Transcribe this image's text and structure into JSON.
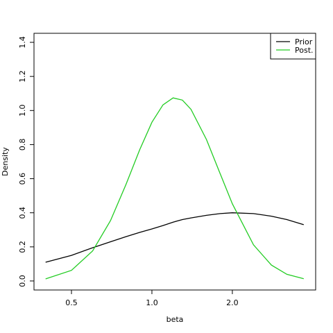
{
  "chart_data": {
    "type": "line",
    "xlabel": "beta",
    "ylabel": "Density",
    "x": [
      0.4,
      0.5,
      0.6,
      0.7,
      0.8,
      0.9,
      1.0,
      1.1,
      1.2,
      1.3,
      1.4,
      1.6,
      1.8,
      2.0,
      2.4,
      2.8,
      3.2,
      3.7
    ],
    "series": [
      {
        "name": "Prior",
        "color": "#000000",
        "values": [
          0.11,
          0.15,
          0.195,
          0.23,
          0.26,
          0.285,
          0.305,
          0.325,
          0.345,
          0.36,
          0.37,
          0.385,
          0.395,
          0.4,
          0.395,
          0.38,
          0.36,
          0.33
        ]
      },
      {
        "name": "Post.",
        "color": "#22cc22",
        "values": [
          0.012,
          0.062,
          0.176,
          0.354,
          0.566,
          0.769,
          0.931,
          1.033,
          1.074,
          1.061,
          1.007,
          0.83,
          0.63,
          0.453,
          0.212,
          0.093,
          0.039,
          0.013
        ]
      }
    ],
    "xscale": "log",
    "xlim": [
      0.362,
      4.1
    ],
    "ylim": [
      -0.053,
      1.453
    ],
    "xticks": [
      0.5,
      {
        "value": 1,
        "label": "1.0"
      },
      {
        "value": 2,
        "label": "2.0"
      }
    ],
    "yticks": [
      {
        "value": 0,
        "label": "0.0"
      },
      0.2,
      0.4,
      0.6,
      0.8,
      {
        "value": 1,
        "label": "1.0"
      },
      1.2,
      1.4
    ],
    "legend": "top-right"
  }
}
